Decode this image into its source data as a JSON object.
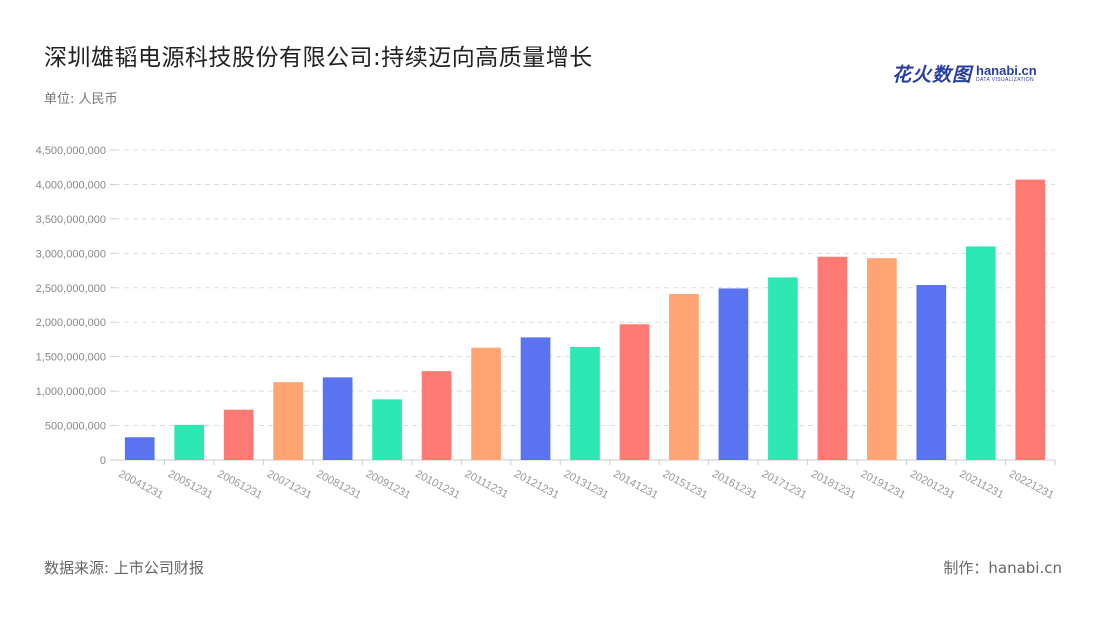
{
  "header": {
    "title": "深圳雄韬电源科技股份有限公司:持续迈向高质量增长",
    "unit": "单位: 人民币"
  },
  "logo": {
    "cn": "花火数图",
    "en": "hanabi.cn",
    "en_sub": "DATA VISUALIZATION"
  },
  "footer": {
    "source": "数据来源: 上市公司财报",
    "credit": "制作：hanabi.cn"
  },
  "chart_data": {
    "type": "bar",
    "categories": [
      "20041231",
      "20051231",
      "20061231",
      "20071231",
      "20081231",
      "20091231",
      "20101231",
      "20111231",
      "20121231",
      "20131231",
      "20141231",
      "20151231",
      "20161231",
      "20171231",
      "20181231",
      "20191231",
      "20201231",
      "20211231",
      "20221231"
    ],
    "values": [
      330000000,
      510000000,
      730000000,
      1130000000,
      1200000000,
      880000000,
      1290000000,
      1630000000,
      1780000000,
      1640000000,
      1970000000,
      2410000000,
      2490000000,
      2650000000,
      2950000000,
      2930000000,
      2540000000,
      3100000000,
      4070000000
    ],
    "colors": [
      "#5b73f0",
      "#2ee8b4",
      "#ff7a72",
      "#ffa472",
      "#5b73f0",
      "#2ee8b4",
      "#ff7a72",
      "#ffa472",
      "#5b73f0",
      "#2ee8b4",
      "#ff7a72",
      "#ffa472",
      "#5b73f0",
      "#2ee8b4",
      "#ff7a72",
      "#ffa472",
      "#5b73f0",
      "#2ee8b4",
      "#ff7a72"
    ],
    "y_ticks": [
      0,
      500000000,
      1000000000,
      1500000000,
      2000000000,
      2500000000,
      3000000000,
      3500000000,
      4000000000,
      4500000000
    ],
    "y_tick_labels": [
      "0",
      "500,000,000",
      "1,000,000,000",
      "1,500,000,000",
      "2,000,000,000",
      "2,500,000,000",
      "3,000,000,000",
      "3,500,000,000",
      "4,000,000,000",
      "4,500,000,000"
    ],
    "ylim": [
      0,
      4500000000
    ],
    "grid": true,
    "x_tick_rotation": "diagonal"
  }
}
